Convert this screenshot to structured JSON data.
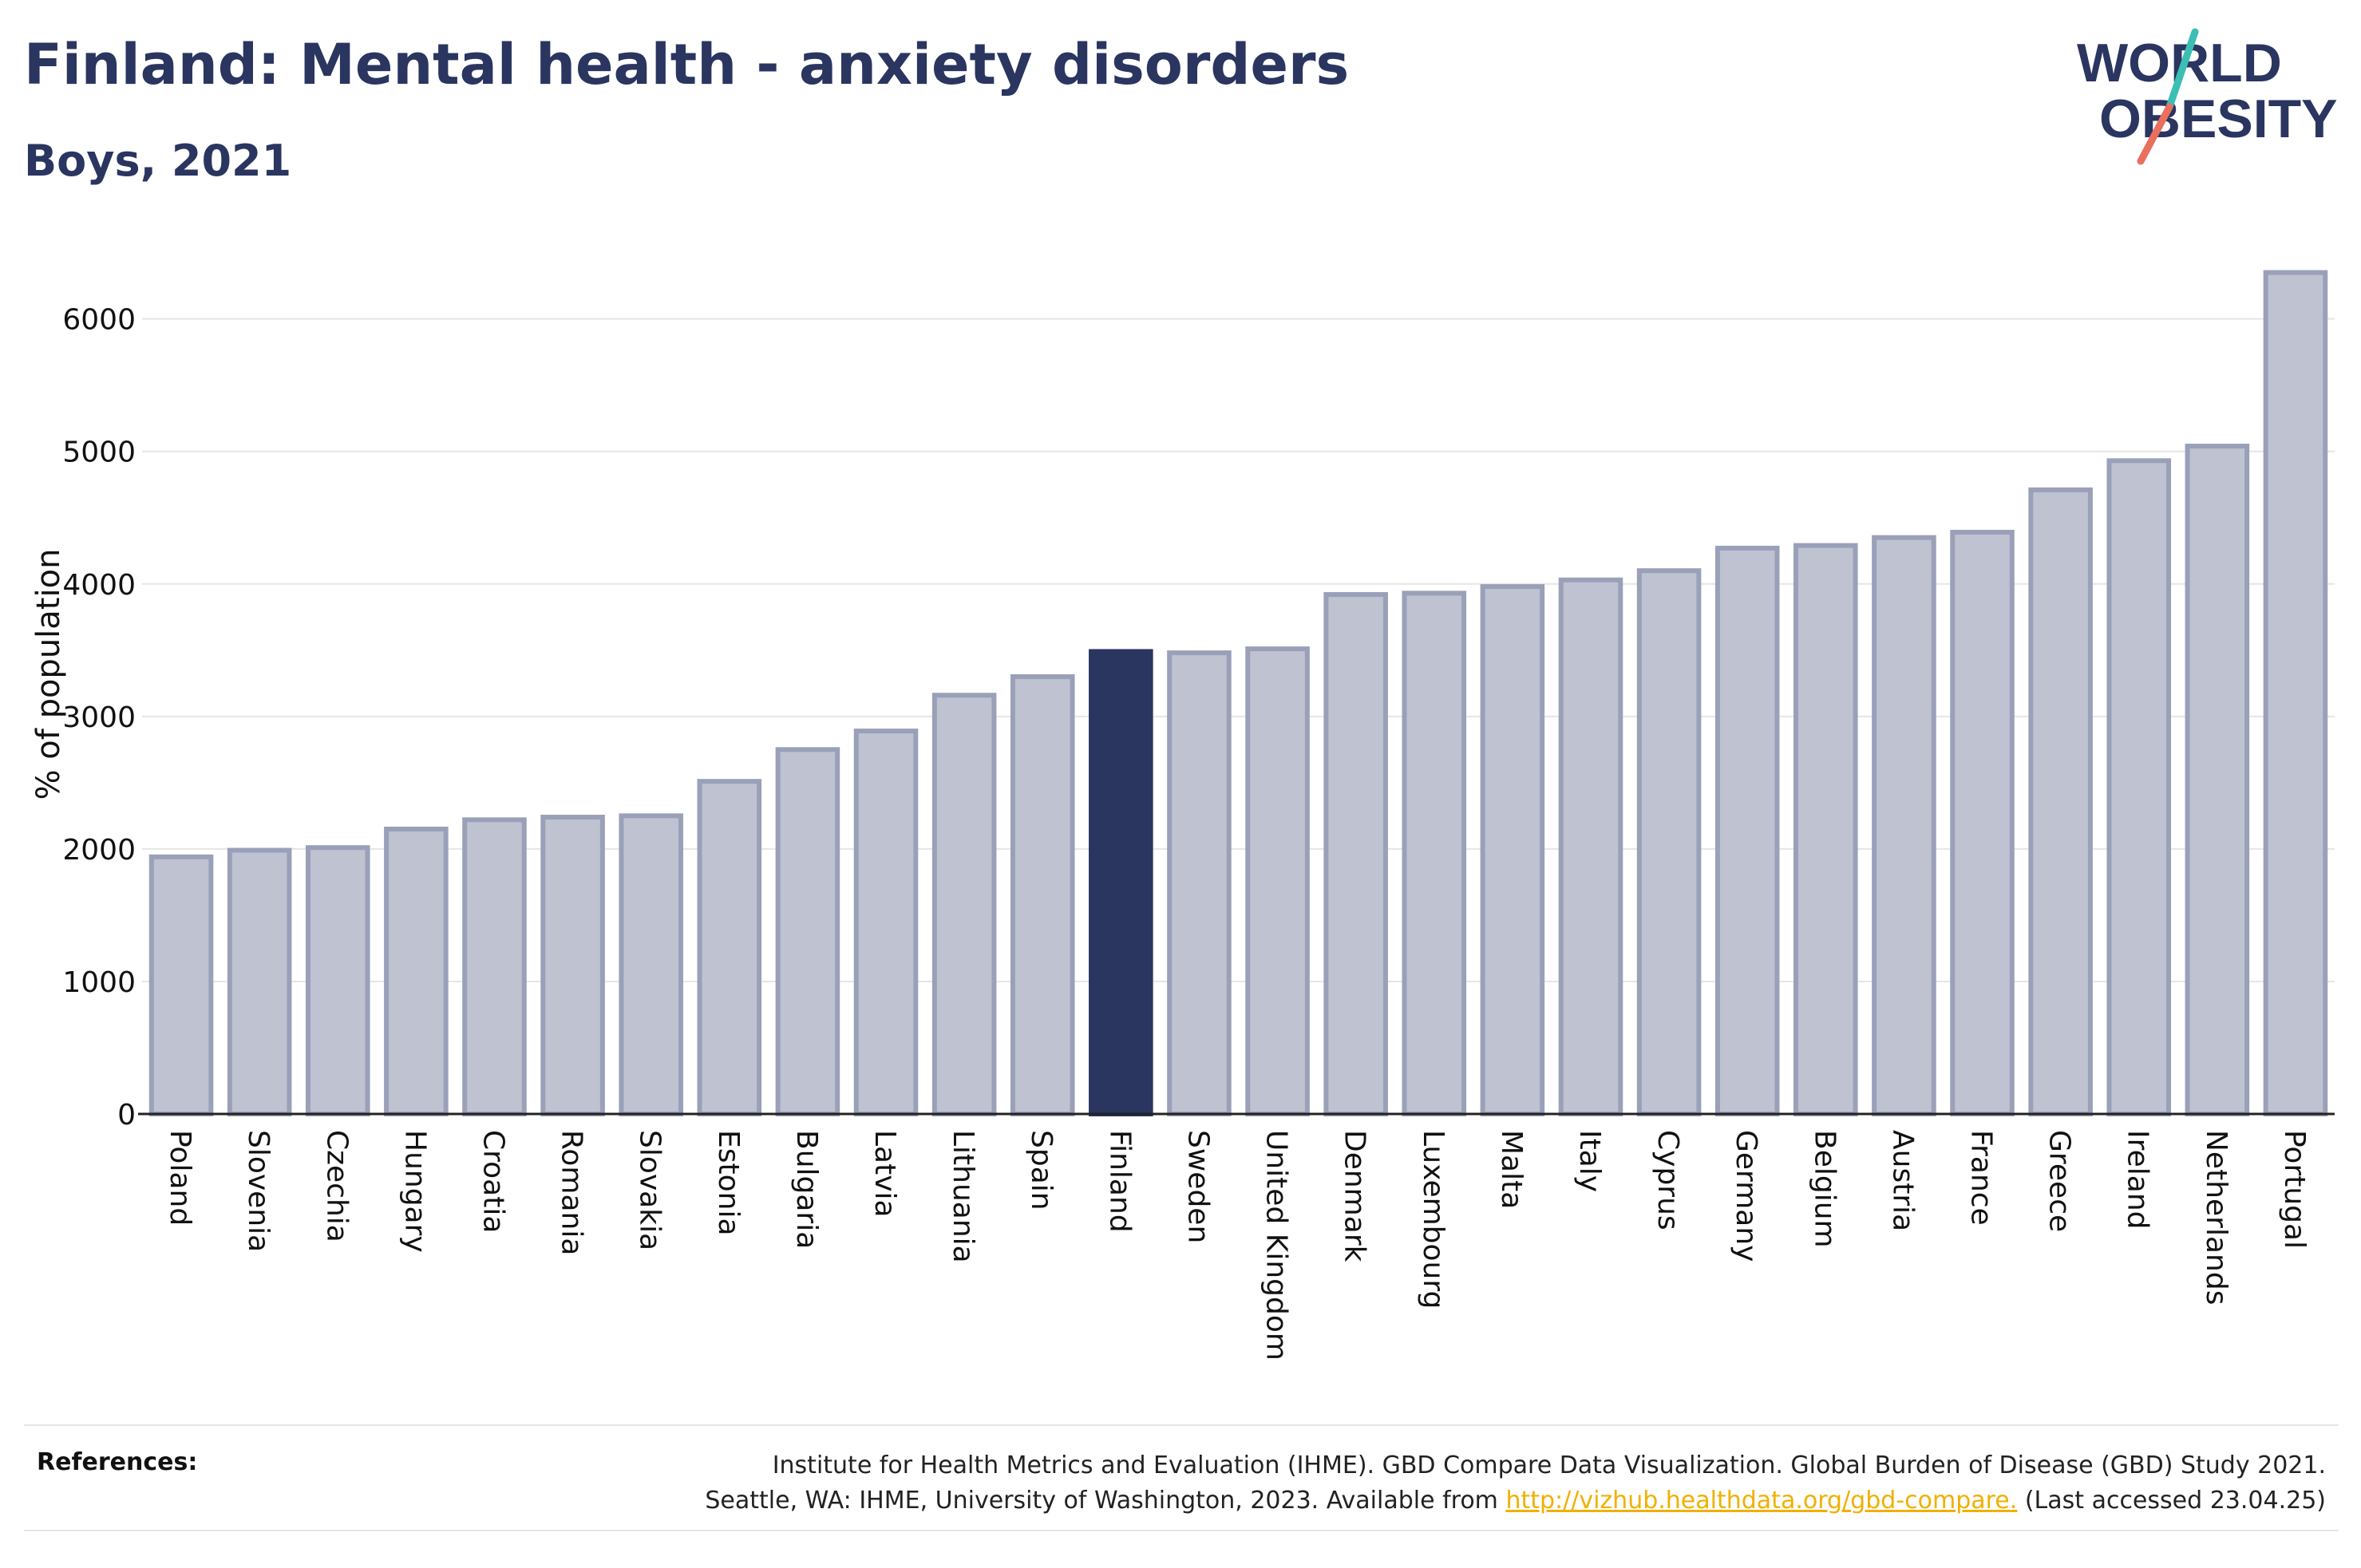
{
  "title": "Finland: Mental health - anxiety disorders",
  "subtitle": "Boys, 2021",
  "logo": {
    "line1": "WORLD",
    "line2": "OBESITY",
    "accent_teal": "#3bbfb4",
    "accent_coral": "#e8705d"
  },
  "colors": {
    "highlight": "#2a3560",
    "bar": "#bfc2d0",
    "bar_border": "#9aa0b8",
    "grid": "#e6e6e6",
    "text": "#2a3560"
  },
  "chart_data": {
    "type": "bar",
    "ylabel": "% of population",
    "xlabel": "",
    "ylim": [
      0,
      6600
    ],
    "yticks": [
      0,
      1000,
      2000,
      3000,
      4000,
      5000,
      6000
    ],
    "highlight": "Finland",
    "categories": [
      "Poland",
      "Slovenia",
      "Czechia",
      "Hungary",
      "Croatia",
      "Romania",
      "Slovakia",
      "Estonia",
      "Bulgaria",
      "Latvia",
      "Lithuania",
      "Spain",
      "Finland",
      "Sweden",
      "United Kingdom",
      "Denmark",
      "Luxembourg",
      "Malta",
      "Italy",
      "Cyprus",
      "Germany",
      "Belgium",
      "Austria",
      "France",
      "Greece",
      "Ireland",
      "Netherlands",
      "Portugal"
    ],
    "values": [
      1940,
      1990,
      2010,
      2150,
      2220,
      2240,
      2250,
      2510,
      2750,
      2890,
      3160,
      3300,
      3490,
      3480,
      3510,
      3920,
      3930,
      3980,
      4030,
      4100,
      4270,
      4290,
      4350,
      4390,
      4710,
      4930,
      5040,
      6350
    ],
    "grid": true,
    "legend": "none"
  },
  "references": {
    "label": "References:",
    "line1": "Institute for Health Metrics and Evaluation (IHME). GBD Compare Data Visualization. Global Burden of Disease (GBD) Study 2021.",
    "line2_prefix": "Seattle, WA: IHME, University of Washington, 2023. Available from ",
    "link": "http://vizhub.healthdata.org/gbd-compare.",
    "line2_suffix": " (Last accessed 23.04.25)"
  }
}
